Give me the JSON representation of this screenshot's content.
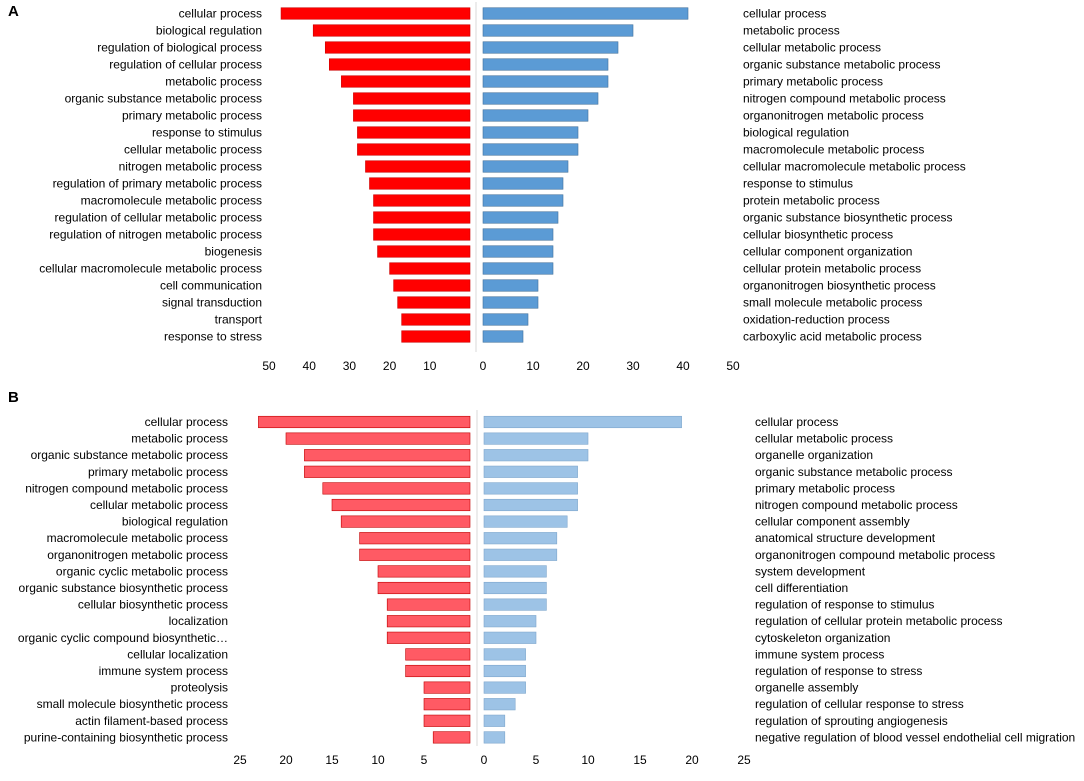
{
  "chart_data": [
    {
      "type": "bar",
      "panel_label": "A",
      "left_series": {
        "name": "left",
        "color": "#ff0000",
        "stroke": "#cc0000",
        "categories": [
          "cellular process",
          "biological regulation",
          "regulation of biological process",
          "regulation of cellular process",
          "metabolic process",
          "organic substance metabolic process",
          "primary metabolic process",
          "response to stimulus",
          "cellular metabolic process",
          "nitrogen metabolic process",
          "regulation of primary metabolic process",
          "macromolecule metabolic process",
          "regulation of cellular metabolic process",
          "regulation of nitrogen metabolic process",
          "biogenesis",
          "cellular macromolecule metabolic process",
          "cell communication",
          "signal transduction",
          "transport",
          "response to stress"
        ],
        "values": [
          47,
          39,
          36,
          35,
          32,
          29,
          29,
          28,
          28,
          26,
          25,
          24,
          24,
          24,
          23,
          20,
          19,
          18,
          17,
          17
        ],
        "xlim": [
          0,
          50
        ],
        "ticks": [
          50,
          40,
          30,
          20,
          10
        ]
      },
      "right_series": {
        "name": "right",
        "color": "#5b9bd5",
        "stroke": "#41719c",
        "categories": [
          "cellular process",
          "metabolic process",
          "cellular metabolic process",
          "organic substance metabolic process",
          "primary metabolic process",
          "nitrogen compound metabolic process",
          "organonitrogen metabolic process",
          "biological regulation",
          "macromolecule metabolic process",
          "cellular macromolecule metabolic process",
          "response to stimulus",
          "protein metabolic process",
          "organic substance biosynthetic process",
          "cellular biosynthetic process",
          "cellular component organization",
          "cellular protein metabolic process",
          "organonitrogen biosynthetic process",
          "small molecule metabolic process",
          "oxidation-reduction process",
          "carboxylic acid metabolic process"
        ],
        "values": [
          41,
          30,
          27,
          25,
          25,
          23,
          21,
          19,
          19,
          17,
          16,
          16,
          15,
          14,
          14,
          14,
          11,
          11,
          9,
          8
        ],
        "xlim": [
          0,
          50
        ],
        "ticks": [
          0,
          10,
          20,
          30,
          40,
          50
        ]
      }
    },
    {
      "type": "bar",
      "panel_label": "B",
      "left_series": {
        "name": "left",
        "color": "#ff5a64",
        "stroke": "#c00000",
        "categories": [
          "cellular process",
          "metabolic process",
          "organic substance metabolic process",
          "primary metabolic process",
          "nitrogen compound metabolic process",
          "cellular metabolic process",
          "biological regulation",
          "macromolecule metabolic process",
          "organonitrogen metabolic process",
          "organic cyclic metabolic process",
          "organic substance biosynthetic process",
          "cellular biosynthetic process",
          "localization",
          "organic cyclic compound biosynthetic…",
          "cellular localization",
          "immune system process",
          "proteolysis",
          "small molecule biosynthetic process",
          "actin filament-based process",
          "purine-containing biosynthetic process"
        ],
        "values": [
          23,
          20,
          18,
          18,
          16,
          15,
          14,
          12,
          12,
          10,
          10,
          9,
          9,
          9,
          7,
          7,
          5,
          5,
          5,
          4
        ],
        "xlim": [
          0,
          25
        ],
        "ticks": [
          25,
          20,
          15,
          10,
          5
        ]
      },
      "right_series": {
        "name": "right",
        "color": "#9dc3e6",
        "stroke": "#7fa7cc",
        "categories": [
          "cellular process",
          "cellular metabolic process",
          "organelle organization",
          "organic substance metabolic process",
          "primary metabolic process",
          "nitrogen compound metabolic process",
          "cellular component assembly",
          "anatomical structure development",
          "organonitrogen compound metabolic process",
          "system development",
          "cell differentiation",
          "regulation of response to stimulus",
          "regulation of cellular protein metabolic process",
          "cytoskeleton organization",
          "immune system process",
          "regulation of response to stress",
          "organelle assembly",
          "regulation of cellular response to stress",
          "regulation of sprouting angiogenesis",
          "negative regulation of blood vessel endothelial cell migration"
        ],
        "values": [
          19,
          10,
          10,
          9,
          9,
          9,
          8,
          7,
          7,
          6,
          6,
          6,
          5,
          5,
          4,
          4,
          4,
          3,
          2,
          2
        ],
        "xlim": [
          0,
          25
        ],
        "ticks": [
          0,
          5,
          10,
          15,
          20,
          25
        ]
      }
    }
  ]
}
